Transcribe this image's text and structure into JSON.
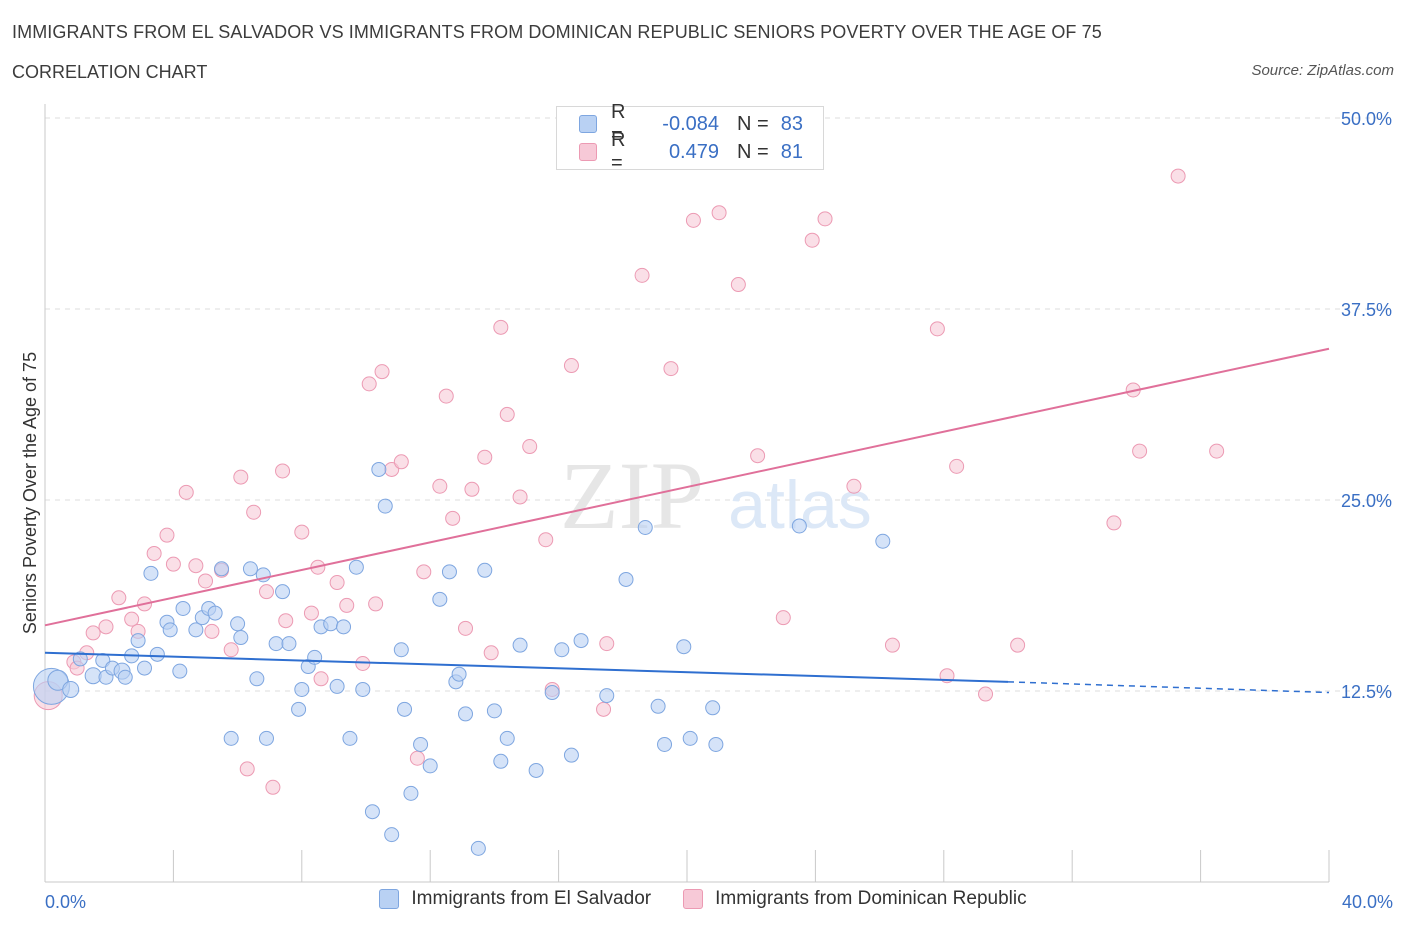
{
  "header": {
    "title": "IMMIGRANTS FROM EL SALVADOR VS IMMIGRANTS FROM DOMINICAN REPUBLIC SENIORS POVERTY OVER THE AGE OF 75",
    "subtitle": "CORRELATION CHART",
    "source": "Source: ZipAtlas.com"
  },
  "legend": {
    "series1": {
      "r_label": "R =",
      "r_value": "-0.084",
      "n_label": "N =",
      "n_value": "83"
    },
    "series2": {
      "r_label": "R =",
      "r_value": "0.479",
      "n_label": "N =",
      "n_value": "81"
    }
  },
  "colors": {
    "blue_fill": "#b9d1f3",
    "blue_stroke": "#7ea6e0",
    "blue_line": "#2f6fd0",
    "pink_fill": "#f7c9d7",
    "pink_stroke": "#ec9ab3",
    "pink_line": "#e0709a",
    "axis_text": "#3a6fc4",
    "grid": "#dddddd"
  },
  "chart_data": {
    "type": "scatter",
    "title": "IMMIGRANTS FROM EL SALVADOR VS IMMIGRANTS FROM DOMINICAN REPUBLIC SENIORS POVERTY OVER THE AGE OF 75",
    "xlabel": "",
    "ylabel": "Seniors Poverty Over the Age of 75",
    "xlim": [
      0,
      40
    ],
    "ylim": [
      0,
      50
    ],
    "x_tick_labels": [
      "0.0%",
      "40.0%"
    ],
    "y_ticks": [
      12.5,
      25.0,
      37.5,
      50.0
    ],
    "y_tick_labels": [
      "12.5%",
      "25.0%",
      "37.5%",
      "50.0%"
    ],
    "watermark": "ZIPatlas",
    "series": [
      {
        "name": "Immigrants from El Salvador",
        "color": "blue",
        "r": -0.084,
        "n": 83,
        "trend": {
          "x0": 0,
          "y0": 15.0,
          "x1": 30,
          "y1": 13.1,
          "dash_to_x": 40,
          "dash_to_y": 12.4
        },
        "points": [
          [
            0.2,
            12.8,
            18
          ],
          [
            0.4,
            13.2,
            10
          ],
          [
            0.8,
            12.6,
            8
          ],
          [
            1.1,
            14.6,
            7
          ],
          [
            1.5,
            13.5,
            8
          ],
          [
            1.8,
            14.5,
            7
          ],
          [
            1.9,
            13.4,
            7
          ],
          [
            2.1,
            14.0,
            7
          ],
          [
            2.4,
            13.8,
            8
          ],
          [
            2.5,
            13.4,
            7
          ],
          [
            2.7,
            14.8,
            7
          ],
          [
            2.9,
            15.8,
            7
          ],
          [
            3.1,
            14.0,
            7
          ],
          [
            3.3,
            20.2,
            7
          ],
          [
            3.5,
            14.9,
            7
          ],
          [
            3.8,
            17.0,
            7
          ],
          [
            3.9,
            16.5,
            7
          ],
          [
            4.2,
            13.8,
            7
          ],
          [
            4.3,
            17.9,
            7
          ],
          [
            4.7,
            16.5,
            7
          ],
          [
            4.9,
            17.3,
            7
          ],
          [
            5.1,
            17.9,
            7
          ],
          [
            5.3,
            17.6,
            7
          ],
          [
            5.5,
            20.5,
            7
          ],
          [
            5.8,
            9.4,
            7
          ],
          [
            6.0,
            16.9,
            7
          ],
          [
            6.1,
            16.0,
            7
          ],
          [
            6.4,
            20.5,
            7
          ],
          [
            6.6,
            13.3,
            7
          ],
          [
            6.8,
            20.1,
            7
          ],
          [
            6.9,
            9.4,
            7
          ],
          [
            7.2,
            15.6,
            7
          ],
          [
            7.4,
            19.0,
            7
          ],
          [
            7.6,
            15.6,
            7
          ],
          [
            7.9,
            11.3,
            7
          ],
          [
            8.0,
            12.6,
            7
          ],
          [
            8.2,
            14.1,
            7
          ],
          [
            8.4,
            14.7,
            7
          ],
          [
            8.6,
            16.7,
            7
          ],
          [
            8.9,
            16.9,
            7
          ],
          [
            9.1,
            12.8,
            7
          ],
          [
            9.3,
            16.7,
            7
          ],
          [
            9.5,
            9.4,
            7
          ],
          [
            9.7,
            20.6,
            7
          ],
          [
            9.9,
            12.6,
            7
          ],
          [
            10.2,
            4.6,
            7
          ],
          [
            10.4,
            27.0,
            7
          ],
          [
            10.6,
            24.6,
            7
          ],
          [
            10.8,
            3.1,
            7
          ],
          [
            11.1,
            15.2,
            7
          ],
          [
            11.2,
            11.3,
            7
          ],
          [
            11.4,
            5.8,
            7
          ],
          [
            11.7,
            9.0,
            7
          ],
          [
            12.0,
            7.6,
            7
          ],
          [
            12.3,
            18.5,
            7
          ],
          [
            12.6,
            20.3,
            7
          ],
          [
            12.8,
            13.1,
            7
          ],
          [
            12.9,
            13.6,
            7
          ],
          [
            13.1,
            11.0,
            7
          ],
          [
            13.5,
            2.2,
            7
          ],
          [
            13.7,
            20.4,
            7
          ],
          [
            14.0,
            11.2,
            7
          ],
          [
            14.2,
            7.9,
            7
          ],
          [
            14.4,
            9.4,
            7
          ],
          [
            14.8,
            15.5,
            7
          ],
          [
            15.3,
            7.3,
            7
          ],
          [
            15.8,
            12.4,
            7
          ],
          [
            16.1,
            15.2,
            7
          ],
          [
            16.4,
            8.3,
            7
          ],
          [
            16.7,
            15.8,
            7
          ],
          [
            17.5,
            12.2,
            7
          ],
          [
            18.1,
            19.8,
            7
          ],
          [
            18.7,
            23.2,
            7
          ],
          [
            19.1,
            11.5,
            7
          ],
          [
            19.3,
            9.0,
            7
          ],
          [
            19.9,
            15.4,
            7
          ],
          [
            20.1,
            9.4,
            7
          ],
          [
            20.8,
            11.4,
            7
          ],
          [
            20.9,
            9.0,
            7
          ],
          [
            23.5,
            23.3,
            7
          ],
          [
            26.1,
            22.3,
            7
          ]
        ]
      },
      {
        "name": "Immigrants from Dominican Republic",
        "color": "pink",
        "r": 0.479,
        "n": 81,
        "trend": {
          "x0": 0,
          "y0": 16.8,
          "x1": 40,
          "y1": 34.9
        },
        "points": [
          [
            0.1,
            12.2,
            14
          ],
          [
            0.9,
            14.4,
            7
          ],
          [
            1.0,
            14.0,
            7
          ],
          [
            1.3,
            15.0,
            7
          ],
          [
            1.5,
            16.3,
            7
          ],
          [
            1.9,
            16.7,
            7
          ],
          [
            2.3,
            18.6,
            7
          ],
          [
            2.7,
            17.2,
            7
          ],
          [
            2.9,
            16.4,
            7
          ],
          [
            3.1,
            18.2,
            7
          ],
          [
            3.4,
            21.5,
            7
          ],
          [
            3.8,
            22.7,
            7
          ],
          [
            4.0,
            20.8,
            7
          ],
          [
            4.4,
            25.5,
            7
          ],
          [
            4.7,
            20.7,
            7
          ],
          [
            5.0,
            19.7,
            7
          ],
          [
            5.2,
            16.4,
            7
          ],
          [
            5.5,
            20.4,
            7
          ],
          [
            5.8,
            15.2,
            7
          ],
          [
            6.1,
            26.5,
            7
          ],
          [
            6.3,
            7.4,
            7
          ],
          [
            6.5,
            24.2,
            7
          ],
          [
            6.9,
            19.0,
            7
          ],
          [
            7.1,
            6.2,
            7
          ],
          [
            7.4,
            26.9,
            7
          ],
          [
            7.5,
            17.1,
            7
          ],
          [
            8.0,
            22.9,
            7
          ],
          [
            8.3,
            17.6,
            7
          ],
          [
            8.5,
            20.6,
            7
          ],
          [
            8.6,
            13.3,
            7
          ],
          [
            9.1,
            19.6,
            7
          ],
          [
            9.4,
            18.1,
            7
          ],
          [
            9.9,
            14.3,
            7
          ],
          [
            10.1,
            32.6,
            7
          ],
          [
            10.3,
            18.2,
            7
          ],
          [
            10.5,
            33.4,
            7
          ],
          [
            10.8,
            27.0,
            7
          ],
          [
            11.1,
            27.5,
            7
          ],
          [
            11.6,
            8.1,
            7
          ],
          [
            11.8,
            20.3,
            7
          ],
          [
            12.3,
            25.9,
            7
          ],
          [
            12.5,
            31.8,
            7
          ],
          [
            12.7,
            23.8,
            7
          ],
          [
            13.1,
            16.6,
            7
          ],
          [
            13.3,
            25.7,
            7
          ],
          [
            13.7,
            27.8,
            7
          ],
          [
            13.9,
            15.0,
            7
          ],
          [
            14.2,
            36.3,
            7
          ],
          [
            14.4,
            30.6,
            7
          ],
          [
            14.8,
            25.2,
            7
          ],
          [
            15.1,
            28.5,
            7
          ],
          [
            15.6,
            22.4,
            7
          ],
          [
            15.8,
            12.6,
            7
          ],
          [
            16.4,
            33.8,
            7
          ],
          [
            17.4,
            11.3,
            7
          ],
          [
            17.5,
            15.6,
            7
          ],
          [
            18.6,
            39.7,
            7
          ],
          [
            19.5,
            33.6,
            7
          ],
          [
            20.2,
            43.3,
            7
          ],
          [
            21.0,
            43.8,
            7
          ],
          [
            21.6,
            39.1,
            7
          ],
          [
            22.2,
            27.9,
            7
          ],
          [
            23.0,
            17.3,
            7
          ],
          [
            23.9,
            42.0,
            7
          ],
          [
            24.3,
            43.4,
            7
          ],
          [
            25.2,
            25.9,
            7
          ],
          [
            26.4,
            15.5,
            7
          ],
          [
            27.8,
            36.2,
            7
          ],
          [
            28.1,
            13.5,
            7
          ],
          [
            28.4,
            27.2,
            7
          ],
          [
            29.3,
            12.3,
            7
          ],
          [
            30.3,
            15.5,
            7
          ],
          [
            33.3,
            23.5,
            7
          ],
          [
            33.9,
            32.2,
            7
          ],
          [
            34.1,
            28.2,
            7
          ],
          [
            35.3,
            46.2,
            7
          ],
          [
            36.5,
            28.2,
            7
          ]
        ]
      }
    ]
  }
}
